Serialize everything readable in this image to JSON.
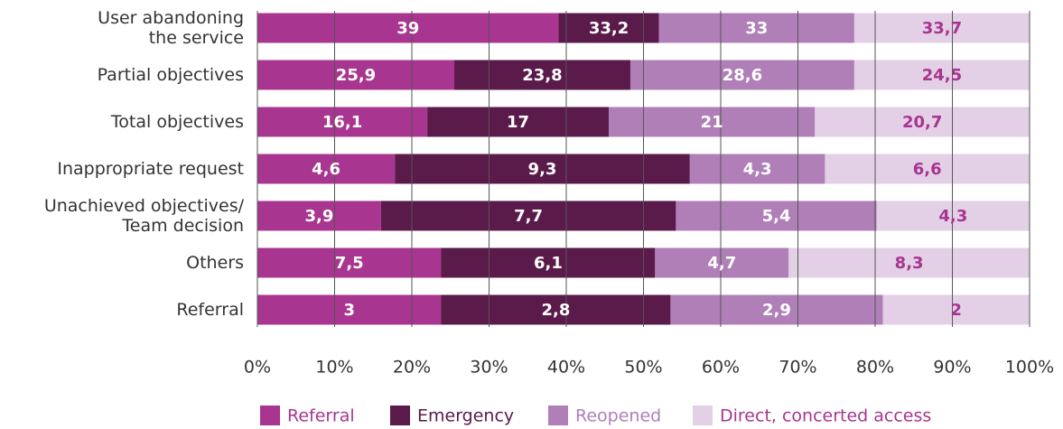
{
  "chart_data": {
    "type": "stacked_bar_horizontal",
    "categories": [
      "User abandoning\nthe service",
      "Partial objectives",
      "Total objectives",
      "Inappropriate request",
      "Unachieved objectives/\nTeam decision",
      "Others",
      "Referral"
    ],
    "series": [
      {
        "name": "Referral",
        "color": "#a8358f",
        "label_color": "#ffffff",
        "values": [
          39,
          25.5,
          22,
          17.8,
          16,
          23.8,
          23.8
        ],
        "labels": [
          "39",
          "25,9",
          "16,1",
          "4,6",
          "3,9",
          "7,5",
          "3"
        ]
      },
      {
        "name": "Emergency",
        "color": "#5a1a4a",
        "label_color": "#ffffff",
        "values": [
          13,
          22.8,
          23.5,
          38.2,
          38.2,
          27.7,
          29.7
        ],
        "labels": [
          "33,2",
          "23,8",
          "17",
          "9,3",
          "7,7",
          "6,1",
          "2,8"
        ]
      },
      {
        "name": "Reopened",
        "color": "#b07fb8",
        "label_color": "#ffffff",
        "values": [
          25.3,
          29,
          26.7,
          17.5,
          26,
          17.3,
          27.5
        ],
        "labels": [
          "33",
          "28,6",
          "21",
          "4,3",
          "5,4",
          "4,7",
          "2,9"
        ]
      },
      {
        "name": "Direct, concerted access",
        "color": "#e3d0e6",
        "label_color": "#a8358f",
        "values": [
          22.7,
          22.7,
          27.8,
          26.5,
          19.8,
          31.2,
          19
        ],
        "labels": [
          "33,7",
          "24,5",
          "20,7",
          "6,6",
          "4,3",
          "8,3",
          "2"
        ]
      }
    ],
    "xlim": [
      0,
      100
    ],
    "xticks": [
      {
        "value": 0,
        "label": "0%"
      },
      {
        "value": 10,
        "label": "10%"
      },
      {
        "value": 20,
        "label": "20%"
      },
      {
        "value": 30,
        "label": "30%"
      },
      {
        "value": 40,
        "label": "40%"
      },
      {
        "value": 50,
        "label": "50%"
      },
      {
        "value": 60,
        "label": "60%"
      },
      {
        "value": 70,
        "label": "70%"
      },
      {
        "value": 80,
        "label": "80%"
      },
      {
        "value": 90,
        "label": "90%"
      },
      {
        "value": 100,
        "label": "100%"
      }
    ],
    "grid": true,
    "legend": "bottom"
  }
}
